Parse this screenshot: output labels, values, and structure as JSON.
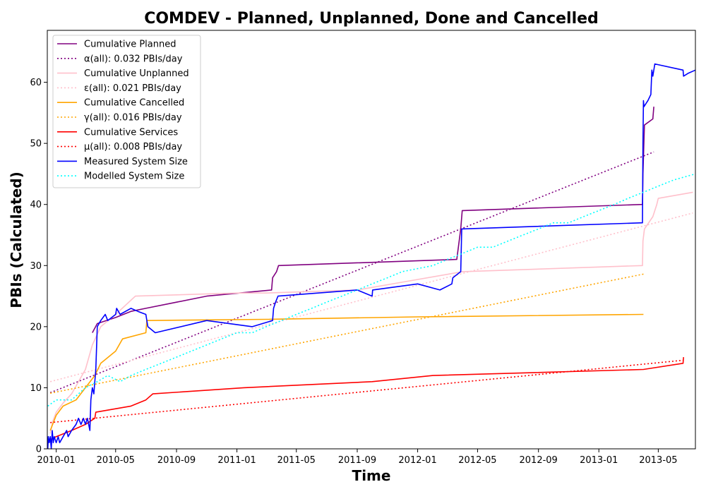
{
  "chart_data": {
    "type": "line",
    "title": "COMDEV - Planned, Unplanned, Done  and Cancelled",
    "xlabel": "Time",
    "ylabel": "PBIs (Calculated)",
    "xlim": [
      "2009-12-14",
      "2013-07-15"
    ],
    "ylim": [
      0,
      68.5
    ],
    "x_ticks": [
      "2010-01",
      "2010-05",
      "2010-09",
      "2011-01",
      "2011-05",
      "2011-09",
      "2012-01",
      "2012-05",
      "2012-09",
      "2013-01",
      "2013-05"
    ],
    "y_ticks": [
      0,
      10,
      20,
      30,
      40,
      50,
      60
    ],
    "grid": false,
    "legend_position": "top-left",
    "series": [
      {
        "name": "Cumulative Planned",
        "color": "#800080",
        "style": "solid",
        "points": [
          [
            "2010-03-15",
            19
          ],
          [
            "2010-03-25",
            20.5
          ],
          [
            "2010-05-01",
            21.5
          ],
          [
            "2010-06-01",
            22.5
          ],
          [
            "2010-07-01",
            23
          ],
          [
            "2010-09-01",
            24
          ],
          [
            "2010-11-01",
            25
          ],
          [
            "2011-03-12",
            26
          ],
          [
            "2011-03-14",
            28
          ],
          [
            "2011-03-22",
            29
          ],
          [
            "2011-03-26",
            30
          ],
          [
            "2012-03-20",
            31
          ],
          [
            "2012-03-28",
            36
          ],
          [
            "2012-03-31",
            39
          ],
          [
            "2013-03-30",
            40
          ],
          [
            "2013-03-31",
            45
          ],
          [
            "2013-04-03",
            53
          ],
          [
            "2013-04-20",
            54
          ],
          [
            "2013-04-22",
            56
          ]
        ]
      },
      {
        "name": "α(all): 0.032 PBIs/day",
        "color": "#800080",
        "style": "dotted",
        "points": [
          [
            "2009-12-20",
            9.2
          ],
          [
            "2013-04-22",
            48.6
          ]
        ]
      },
      {
        "name": "Cumulative Unplanned",
        "color": "#ffc0cb",
        "style": "solid",
        "points": [
          [
            "2009-12-20",
            2.5
          ],
          [
            "2009-12-25",
            4.5
          ],
          [
            "2010-01-01",
            6
          ],
          [
            "2010-01-15",
            7.5
          ],
          [
            "2010-02-01",
            9
          ],
          [
            "2010-03-01",
            13
          ],
          [
            "2010-03-15",
            17
          ],
          [
            "2010-04-01",
            20
          ],
          [
            "2010-05-01",
            22
          ],
          [
            "2010-06-10",
            25
          ],
          [
            "2011-01-01",
            25.5
          ],
          [
            "2011-03-01",
            25.5
          ],
          [
            "2011-09-01",
            26
          ],
          [
            "2012-04-01",
            29
          ],
          [
            "2013-03-30",
            30
          ],
          [
            "2013-03-31",
            34
          ],
          [
            "2013-04-03",
            36
          ],
          [
            "2013-04-20",
            38
          ],
          [
            "2013-04-28",
            40
          ],
          [
            "2013-05-01",
            41
          ],
          [
            "2013-07-10",
            42
          ]
        ]
      },
      {
        "name": "ε(all): 0.021 PBIs/day",
        "color": "#ffc0cb",
        "style": "dotted",
        "points": [
          [
            "2009-12-20",
            11
          ],
          [
            "2013-07-10",
            38.6
          ]
        ]
      },
      {
        "name": "Cumulative Cancelled",
        "color": "#ffa500",
        "style": "solid",
        "points": [
          [
            "2009-12-20",
            3
          ],
          [
            "2010-01-01",
            5.5
          ],
          [
            "2010-01-15",
            7
          ],
          [
            "2010-02-10",
            8
          ],
          [
            "2010-03-01",
            10
          ],
          [
            "2010-03-20",
            12
          ],
          [
            "2010-04-01",
            14
          ],
          [
            "2010-05-01",
            16
          ],
          [
            "2010-05-15",
            18
          ],
          [
            "2010-07-01",
            19
          ],
          [
            "2010-07-03",
            21
          ],
          [
            "2011-03-01",
            21.2
          ],
          [
            "2012-01-01",
            21.6
          ],
          [
            "2013-04-01",
            22
          ]
        ]
      },
      {
        "name": "γ(all): 0.016 PBIs/day",
        "color": "#ffa500",
        "style": "dotted",
        "points": [
          [
            "2009-12-20",
            9.1
          ],
          [
            "2013-04-01",
            28.6
          ]
        ]
      },
      {
        "name": "Cumulative Services",
        "color": "#ff0000",
        "style": "solid",
        "points": [
          [
            "2009-12-20",
            1.5
          ],
          [
            "2010-01-01",
            2
          ],
          [
            "2010-02-01",
            3
          ],
          [
            "2010-03-01",
            4
          ],
          [
            "2010-03-20",
            5
          ],
          [
            "2010-03-22",
            6
          ],
          [
            "2010-06-01",
            7
          ],
          [
            "2010-07-01",
            8
          ],
          [
            "2010-07-15",
            9
          ],
          [
            "2011-01-15",
            10
          ],
          [
            "2011-10-01",
            11
          ],
          [
            "2012-02-01",
            12
          ],
          [
            "2013-04-01",
            13
          ],
          [
            "2013-06-20",
            14
          ],
          [
            "2013-06-21",
            15
          ]
        ]
      },
      {
        "name": "μ(all): 0.008 PBIs/day",
        "color": "#ff0000",
        "style": "dotted",
        "points": [
          [
            "2009-12-20",
            4.3
          ],
          [
            "2013-06-20",
            14.5
          ]
        ]
      },
      {
        "name": "Measured System Size",
        "color": "#0000ff",
        "style": "solid",
        "points": [
          [
            "2009-12-15",
            0
          ],
          [
            "2009-12-16",
            2
          ],
          [
            "2009-12-18",
            1
          ],
          [
            "2009-12-20",
            2
          ],
          [
            "2009-12-22",
            0
          ],
          [
            "2009-12-24",
            3
          ],
          [
            "2009-12-26",
            1
          ],
          [
            "2009-12-28",
            2
          ],
          [
            "2010-01-01",
            1
          ],
          [
            "2010-01-05",
            2
          ],
          [
            "2010-01-08",
            1
          ],
          [
            "2010-01-15",
            2
          ],
          [
            "2010-01-22",
            3
          ],
          [
            "2010-01-25",
            2
          ],
          [
            "2010-02-01",
            3
          ],
          [
            "2010-02-10",
            4
          ],
          [
            "2010-02-15",
            5
          ],
          [
            "2010-02-20",
            4
          ],
          [
            "2010-02-25",
            5
          ],
          [
            "2010-03-01",
            4
          ],
          [
            "2010-03-05",
            5
          ],
          [
            "2010-03-10",
            3
          ],
          [
            "2010-03-12",
            8
          ],
          [
            "2010-03-15",
            10
          ],
          [
            "2010-03-18",
            9
          ],
          [
            "2010-03-20",
            11
          ],
          [
            "2010-03-22",
            13
          ],
          [
            "2010-03-25",
            20
          ],
          [
            "2010-04-01",
            21
          ],
          [
            "2010-04-10",
            22
          ],
          [
            "2010-04-15",
            21
          ],
          [
            "2010-05-01",
            22
          ],
          [
            "2010-05-03",
            23
          ],
          [
            "2010-05-10",
            22
          ],
          [
            "2010-06-01",
            23
          ],
          [
            "2010-06-15",
            22.5
          ],
          [
            "2010-07-01",
            22
          ],
          [
            "2010-07-05",
            20
          ],
          [
            "2010-07-20",
            19
          ],
          [
            "2010-11-01",
            21
          ],
          [
            "2011-02-01",
            20
          ],
          [
            "2011-03-14",
            21
          ],
          [
            "2011-03-16",
            23
          ],
          [
            "2011-03-20",
            24
          ],
          [
            "2011-03-25",
            25
          ],
          [
            "2011-09-01",
            26
          ],
          [
            "2011-10-01",
            25
          ],
          [
            "2011-10-02",
            26
          ],
          [
            "2012-01-01",
            27
          ],
          [
            "2012-02-15",
            26
          ],
          [
            "2012-03-10",
            27
          ],
          [
            "2012-03-12",
            28
          ],
          [
            "2012-03-28",
            29
          ],
          [
            "2012-03-30",
            36
          ],
          [
            "2013-03-30",
            37
          ],
          [
            "2013-03-31",
            50
          ],
          [
            "2013-04-01",
            57
          ],
          [
            "2013-04-02",
            56
          ],
          [
            "2013-04-10",
            57
          ],
          [
            "2013-04-16",
            58
          ],
          [
            "2013-04-18",
            62
          ],
          [
            "2013-04-20",
            61
          ],
          [
            "2013-04-24",
            63
          ],
          [
            "2013-06-20",
            62
          ],
          [
            "2013-06-21",
            61
          ],
          [
            "2013-07-01",
            61.5
          ],
          [
            "2013-07-15",
            62
          ]
        ]
      },
      {
        "name": "Modelled System Size",
        "color": "#00ffff",
        "style": "dotted",
        "points": [
          [
            "2009-12-15",
            7
          ],
          [
            "2010-01-01",
            8
          ],
          [
            "2010-02-01",
            8
          ],
          [
            "2010-03-01",
            10
          ],
          [
            "2010-03-25",
            11
          ],
          [
            "2010-04-15",
            12
          ],
          [
            "2010-05-10",
            11
          ],
          [
            "2010-06-01",
            12
          ],
          [
            "2010-07-01",
            13
          ],
          [
            "2010-08-01",
            14
          ],
          [
            "2010-09-01",
            15
          ],
          [
            "2010-10-01",
            16
          ],
          [
            "2010-11-01",
            17
          ],
          [
            "2010-12-01",
            18
          ],
          [
            "2011-01-01",
            19
          ],
          [
            "2011-02-01",
            19
          ],
          [
            "2011-03-01",
            20
          ],
          [
            "2011-04-01",
            21
          ],
          [
            "2011-05-01",
            22
          ],
          [
            "2011-06-01",
            23
          ],
          [
            "2011-07-01",
            24
          ],
          [
            "2011-08-01",
            25
          ],
          [
            "2011-09-01",
            26
          ],
          [
            "2011-10-01",
            27
          ],
          [
            "2011-11-01",
            28
          ],
          [
            "2011-12-01",
            29
          ],
          [
            "2012-01-01",
            29.5
          ],
          [
            "2012-02-01",
            30
          ],
          [
            "2012-03-01",
            31
          ],
          [
            "2012-04-01",
            32
          ],
          [
            "2012-05-01",
            33
          ],
          [
            "2012-06-01",
            33
          ],
          [
            "2012-07-01",
            34
          ],
          [
            "2012-08-01",
            35
          ],
          [
            "2012-09-01",
            36
          ],
          [
            "2012-10-01",
            37
          ],
          [
            "2012-11-01",
            37
          ],
          [
            "2012-12-01",
            38
          ],
          [
            "2013-01-01",
            39
          ],
          [
            "2013-02-01",
            40
          ],
          [
            "2013-03-01",
            41
          ],
          [
            "2013-04-01",
            42
          ],
          [
            "2013-05-01",
            43
          ],
          [
            "2013-06-01",
            44
          ],
          [
            "2013-07-15",
            45
          ]
        ]
      }
    ]
  }
}
